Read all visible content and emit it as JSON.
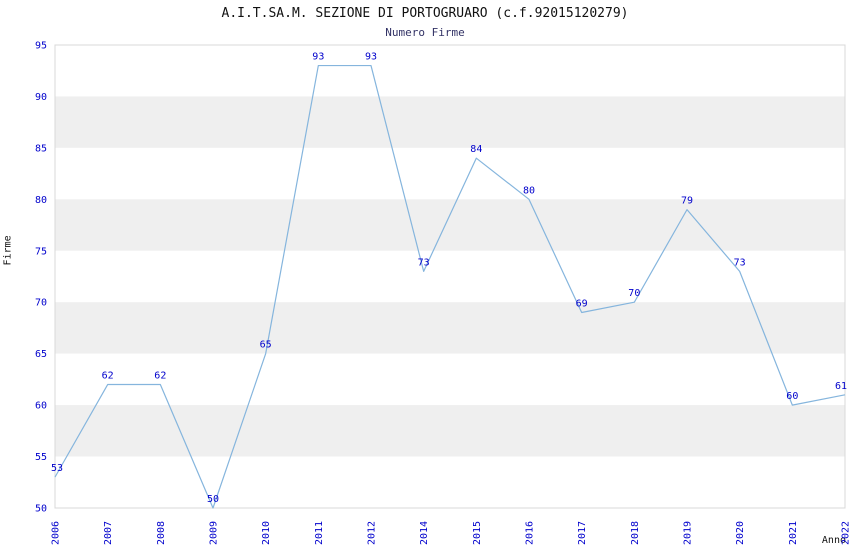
{
  "header": {
    "title": "A.I.T.SA.M. SEZIONE DI PORTOGRUARO (c.f.92015120279)",
    "subtitle": "Numero Firme"
  },
  "chart_data": {
    "type": "line",
    "title": "A.I.T.SA.M. SEZIONE DI PORTOGRUARO (c.f.92015120279)",
    "subtitle": "Numero Firme",
    "xlabel": "Anno",
    "ylabel": "Firme",
    "categories": [
      "2006",
      "2007",
      "2008",
      "2009",
      "2010",
      "2011",
      "2012",
      "2014",
      "2015",
      "2016",
      "2017",
      "2018",
      "2019",
      "2020",
      "2021",
      "2022"
    ],
    "values": [
      53,
      62,
      62,
      50,
      65,
      93,
      93,
      73,
      84,
      80,
      69,
      70,
      79,
      73,
      60,
      61
    ],
    "ylim": [
      50,
      95
    ],
    "ytick_step": 5,
    "grid": "horizontal-bands",
    "legend": "none",
    "colors": {
      "line": "#85b5dd",
      "data_label": "#0000cc",
      "tick_label": "#0000cc",
      "band_gray": "#efefef",
      "band_white": "#ffffff",
      "plot_border": "#d8d8d8",
      "axis_text": "#111111"
    }
  }
}
